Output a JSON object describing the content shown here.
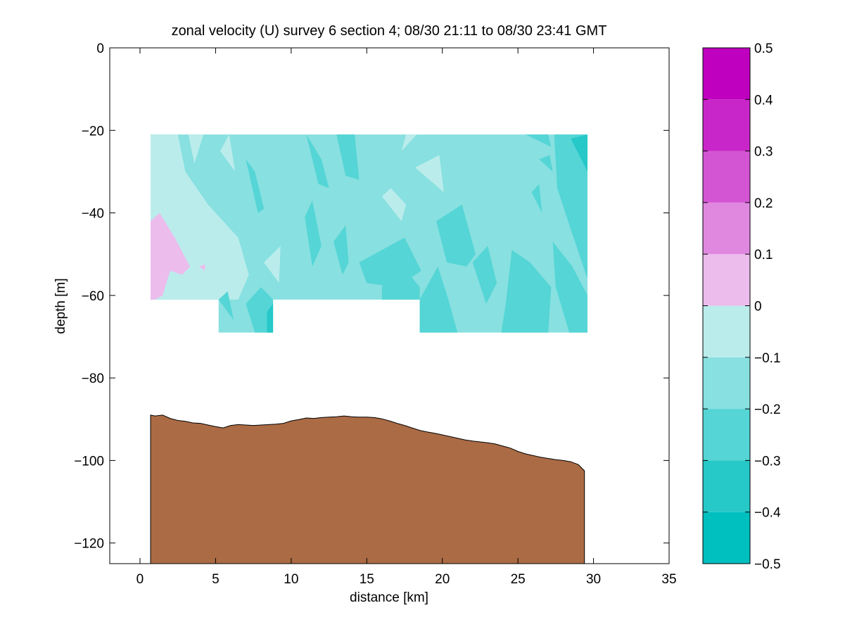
{
  "chart_data": {
    "type": "heatmap",
    "title": "zonal velocity (U) survey 6 section 4; 08/30 21:11 to 08/30 23:41 GMT",
    "xlabel": "distance [km]",
    "ylabel": "depth [m]",
    "xlim": [
      -2,
      35
    ],
    "ylim": [
      -125,
      0
    ],
    "xticks": [
      0,
      5,
      10,
      15,
      20,
      25,
      30,
      35
    ],
    "yticks": [
      0,
      -20,
      -40,
      -60,
      -80,
      -100,
      -120
    ],
    "grid": false,
    "colorbar": {
      "levels": [
        -0.5,
        -0.4,
        -0.3,
        -0.2,
        -0.1,
        0,
        0.1,
        0.2,
        0.3,
        0.4,
        0.5
      ],
      "tick_labels": [
        "0.5",
        "0.4",
        "0.3",
        "0.2",
        "0.1",
        "0",
        "−0.1",
        "−0.2",
        "−0.3",
        "−0.4",
        "−0.5"
      ],
      "colors": [
        "#00BFBF",
        "#26C8C8",
        "#55D5D5",
        "#88E0E0",
        "#BBECEC",
        "#ECBCEC",
        "#E088E0",
        "#D455D4",
        "#C826C8",
        "#BF00BF"
      ]
    },
    "velocity_regions": [
      {
        "level": "-0.2 to -0.1",
        "color": "#88E0E0",
        "polygon": [
          [
            0.7,
            -21
          ],
          [
            29.6,
            -21
          ],
          [
            29.6,
            -69
          ],
          [
            18.5,
            -69
          ],
          [
            18.5,
            -61
          ],
          [
            8.8,
            -61
          ],
          [
            8.8,
            -69
          ],
          [
            5.2,
            -69
          ],
          [
            5.2,
            -61
          ],
          [
            0.7,
            -61
          ]
        ]
      },
      {
        "level": "-0.1 to 0",
        "color": "#BBECEC",
        "polygon": [
          [
            0.7,
            -21
          ],
          [
            2.5,
            -21
          ],
          [
            3.0,
            -30
          ],
          [
            4.5,
            -38
          ],
          [
            6.5,
            -46
          ],
          [
            7.2,
            -55
          ],
          [
            6.5,
            -61
          ],
          [
            0.7,
            -61
          ]
        ]
      },
      {
        "level": "-0.1 to 0",
        "color": "#BBECEC",
        "polygon": [
          [
            3.2,
            -21
          ],
          [
            4.2,
            -21
          ],
          [
            3.6,
            -28
          ]
        ]
      },
      {
        "level": "-0.1 to 0",
        "color": "#BBECEC",
        "polygon": [
          [
            5.3,
            -25
          ],
          [
            5.9,
            -21
          ],
          [
            6.3,
            -30
          ]
        ]
      },
      {
        "level": "-0.1 to 0",
        "color": "#BBECEC",
        "polygon": [
          [
            8.2,
            -52
          ],
          [
            9.3,
            -48
          ],
          [
            9.2,
            -57
          ]
        ]
      },
      {
        "level": "-0.1 to 0",
        "color": "#BBECEC",
        "polygon": [
          [
            16.0,
            -36
          ],
          [
            16.6,
            -34
          ],
          [
            17.6,
            -38
          ],
          [
            17.3,
            -42
          ]
        ]
      },
      {
        "level": "-0.1 to 0",
        "color": "#BBECEC",
        "polygon": [
          [
            18.2,
            -29
          ],
          [
            19.8,
            -26
          ],
          [
            20.1,
            -35
          ]
        ]
      },
      {
        "level": "-0.1 to 0",
        "color": "#BBECEC",
        "polygon": [
          [
            17.3,
            -25
          ],
          [
            17.6,
            -21
          ],
          [
            18.3,
            -21
          ]
        ]
      },
      {
        "level": "0 to 0.1",
        "color": "#ECBCEC",
        "polygon": [
          [
            0.7,
            -42
          ],
          [
            1.3,
            -40
          ],
          [
            2.3,
            -46
          ],
          [
            3.3,
            -53
          ],
          [
            2.8,
            -55
          ],
          [
            2.0,
            -54
          ],
          [
            1.5,
            -60
          ],
          [
            1.0,
            -61
          ],
          [
            0.7,
            -61
          ]
        ]
      },
      {
        "level": "0 to 0.1",
        "color": "#ECBCEC",
        "polygon": [
          [
            3.9,
            -53
          ],
          [
            4.3,
            -52.5
          ],
          [
            4.3,
            -54
          ]
        ]
      },
      {
        "level": "-0.3 to -0.2",
        "color": "#55D5D5",
        "polygon": [
          [
            7.0,
            -62
          ],
          [
            8.0,
            -58
          ],
          [
            8.8,
            -61
          ],
          [
            8.8,
            -69
          ],
          [
            7.6,
            -69
          ]
        ]
      },
      {
        "level": "-0.3 to -0.2",
        "color": "#55D5D5",
        "polygon": [
          [
            5.2,
            -61
          ],
          [
            5.8,
            -59
          ],
          [
            6.2,
            -66
          ]
        ]
      },
      {
        "level": "-0.3 to -0.2",
        "color": "#55D5D5",
        "polygon": [
          [
            7.0,
            -27
          ],
          [
            7.6,
            -30
          ],
          [
            8.2,
            -39
          ],
          [
            7.8,
            -40
          ]
        ]
      },
      {
        "level": "-0.3 to -0.2",
        "color": "#55D5D5",
        "polygon": [
          [
            11.0,
            -21
          ],
          [
            12.0,
            -27
          ],
          [
            12.5,
            -34
          ],
          [
            11.8,
            -33
          ]
        ]
      },
      {
        "level": "-0.3 to -0.2",
        "color": "#55D5D5",
        "polygon": [
          [
            13.0,
            -21
          ],
          [
            14.2,
            -21
          ],
          [
            14.5,
            -32
          ],
          [
            13.6,
            -31
          ]
        ]
      },
      {
        "level": "-0.3 to -0.2",
        "color": "#55D5D5",
        "polygon": [
          [
            10.9,
            -41
          ],
          [
            11.4,
            -37
          ],
          [
            12.0,
            -48
          ],
          [
            11.4,
            -53
          ]
        ]
      },
      {
        "level": "-0.3 to -0.2",
        "color": "#55D5D5",
        "polygon": [
          [
            12.8,
            -47
          ],
          [
            13.6,
            -43
          ],
          [
            13.8,
            -52
          ],
          [
            13.4,
            -55
          ]
        ]
      },
      {
        "level": "-0.3 to -0.2",
        "color": "#55D5D5",
        "polygon": [
          [
            16.0,
            -58
          ],
          [
            17.0,
            -51
          ],
          [
            18.5,
            -58
          ],
          [
            18.5,
            -61
          ],
          [
            16.0,
            -61
          ]
        ]
      },
      {
        "level": "-0.3 to -0.2",
        "color": "#55D5D5",
        "polygon": [
          [
            14.5,
            -52
          ],
          [
            17.5,
            -46
          ],
          [
            18.6,
            -54
          ],
          [
            17.0,
            -58
          ],
          [
            15.0,
            -57
          ]
        ]
      },
      {
        "level": "-0.3 to -0.2",
        "color": "#55D5D5",
        "polygon": [
          [
            18.5,
            -61
          ],
          [
            19.7,
            -53
          ],
          [
            20.4,
            -61
          ],
          [
            21.0,
            -69
          ],
          [
            18.5,
            -69
          ]
        ]
      },
      {
        "level": "-0.3 to -0.2",
        "color": "#55D5D5",
        "polygon": [
          [
            19.6,
            -42
          ],
          [
            21.3,
            -38
          ],
          [
            22.2,
            -50
          ],
          [
            21.6,
            -53
          ],
          [
            20.3,
            -52
          ]
        ]
      },
      {
        "level": "-0.3 to -0.2",
        "color": "#55D5D5",
        "polygon": [
          [
            22.0,
            -52
          ],
          [
            23.0,
            -48
          ],
          [
            23.6,
            -57
          ],
          [
            22.9,
            -62
          ]
        ]
      },
      {
        "level": "-0.3 to -0.2",
        "color": "#55D5D5",
        "polygon": [
          [
            24.6,
            -49
          ],
          [
            25.8,
            -52
          ],
          [
            27.2,
            -58
          ],
          [
            27.0,
            -69
          ],
          [
            23.9,
            -69
          ],
          [
            24.2,
            -62
          ]
        ]
      },
      {
        "level": "-0.3 to -0.2",
        "color": "#55D5D5",
        "polygon": [
          [
            25.9,
            -35
          ],
          [
            26.4,
            -33
          ],
          [
            26.6,
            -40
          ]
        ]
      },
      {
        "level": "-0.3 to -0.2",
        "color": "#55D5D5",
        "polygon": [
          [
            26.4,
            -27
          ],
          [
            27.1,
            -26
          ],
          [
            27.3,
            -30
          ]
        ]
      },
      {
        "level": "-0.3 to -0.2",
        "color": "#55D5D5",
        "polygon": [
          [
            25.5,
            -21
          ],
          [
            27.0,
            -21
          ],
          [
            27.2,
            -24
          ]
        ]
      },
      {
        "level": "-0.3 to -0.2",
        "color": "#55D5D5",
        "polygon": [
          [
            27.4,
            -21
          ],
          [
            29.6,
            -21
          ],
          [
            29.6,
            -56
          ],
          [
            28.5,
            -44
          ],
          [
            27.6,
            -34
          ]
        ]
      },
      {
        "level": "-0.3 to -0.2",
        "color": "#55D5D5",
        "polygon": [
          [
            27.3,
            -47
          ],
          [
            28.6,
            -53
          ],
          [
            29.6,
            -60
          ],
          [
            29.6,
            -69
          ],
          [
            28.4,
            -69
          ],
          [
            27.5,
            -58
          ]
        ]
      },
      {
        "level": "-0.4 to -0.3",
        "color": "#26C8C8",
        "polygon": [
          [
            28.5,
            -22
          ],
          [
            29.6,
            -21
          ],
          [
            29.6,
            -30
          ]
        ]
      },
      {
        "level": "-0.4 to -0.3",
        "color": "#26C8C8",
        "polygon": [
          [
            8.4,
            -64
          ],
          [
            8.8,
            -62
          ],
          [
            8.8,
            -69
          ],
          [
            8.4,
            -69
          ]
        ]
      }
    ],
    "bathymetry": {
      "color": "#AB6B45",
      "x": [
        0.7,
        1.0,
        1.5,
        2.0,
        2.5,
        3.0,
        3.5,
        4.0,
        4.5,
        5.0,
        5.5,
        6.0,
        6.5,
        7.0,
        7.5,
        8.0,
        8.5,
        9.0,
        9.5,
        10.0,
        10.5,
        11.0,
        11.5,
        12.0,
        12.5,
        13.0,
        13.5,
        14.0,
        14.5,
        15.0,
        15.5,
        16.0,
        16.5,
        17.0,
        17.5,
        18.0,
        18.5,
        19.0,
        19.5,
        20.0,
        20.5,
        21.0,
        21.5,
        22.0,
        22.5,
        23.0,
        23.5,
        24.0,
        24.5,
        25.0,
        25.5,
        26.0,
        26.5,
        27.0,
        27.5,
        28.0,
        28.5,
        29.0,
        29.4
      ],
      "depth": [
        -89.0,
        -89.2,
        -89.0,
        -89.8,
        -90.3,
        -90.5,
        -90.9,
        -91.0,
        -91.4,
        -91.8,
        -92.1,
        -91.5,
        -91.3,
        -91.4,
        -91.5,
        -91.4,
        -91.3,
        -91.2,
        -91.0,
        -90.4,
        -90.1,
        -89.7,
        -89.8,
        -89.6,
        -89.5,
        -89.4,
        -89.2,
        -89.4,
        -89.5,
        -89.5,
        -89.6,
        -89.9,
        -90.4,
        -91.0,
        -91.5,
        -92.1,
        -92.7,
        -93.1,
        -93.4,
        -93.8,
        -94.2,
        -94.6,
        -95.0,
        -95.3,
        -95.5,
        -95.7,
        -96.0,
        -96.5,
        -97.0,
        -97.8,
        -98.4,
        -98.8,
        -99.2,
        -99.5,
        -99.8,
        -100.0,
        -100.3,
        -101.0,
        -102.5
      ]
    }
  }
}
